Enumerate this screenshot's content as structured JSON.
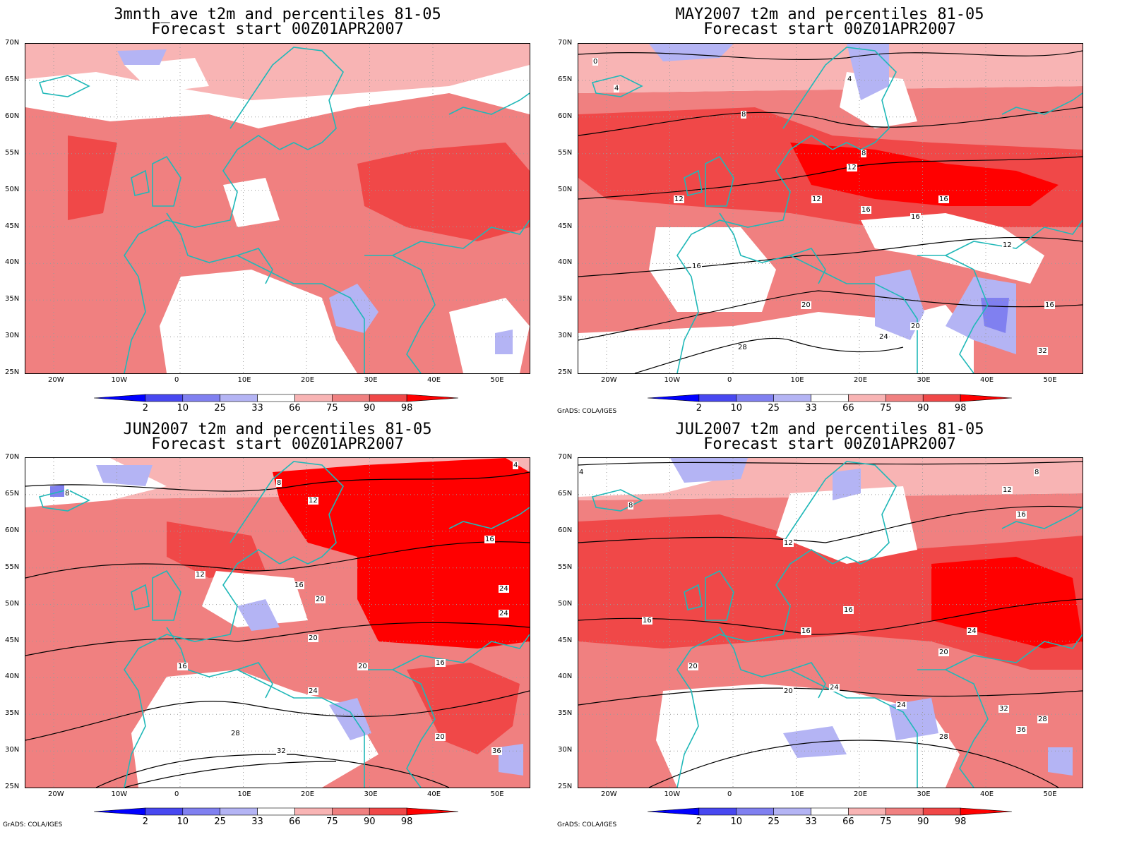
{
  "panels": [
    {
      "title": "3mnth_ave t2m and percentiles 81-05",
      "subtitle": "Forecast start 00Z01APR2007",
      "credit": "",
      "contour_labels": []
    },
    {
      "title": "MAY2007 t2m and percentiles 81-05",
      "subtitle": "Forecast start 00Z01APR2007",
      "credit": "GrADS: COLA/IGES",
      "contour_labels": [
        "0",
        "4",
        "4",
        "8",
        "8",
        "12",
        "12",
        "12",
        "16",
        "16",
        "16",
        "16",
        "20",
        "20",
        "24",
        "28",
        "32",
        "12",
        "16"
      ]
    },
    {
      "title": "JUN2007 t2m and percentiles 81-05",
      "subtitle": "Forecast start 00Z01APR2007",
      "credit": "GrADS: COLA/IGES",
      "contour_labels": [
        "4",
        "8",
        "8",
        "12",
        "12",
        "16",
        "16",
        "16",
        "20",
        "20",
        "20",
        "24",
        "24",
        "28",
        "32",
        "36",
        "16",
        "20",
        "24"
      ]
    },
    {
      "title": "JUL2007 t2m and percentiles 81-05",
      "subtitle": "Forecast start 00Z01APR2007",
      "credit": "GrADS: COLA/IGES",
      "contour_labels": [
        "4",
        "8",
        "8",
        "12",
        "12",
        "16",
        "16",
        "16",
        "20",
        "20",
        "24",
        "24",
        "28",
        "32",
        "36",
        "24",
        "28",
        "20",
        "16"
      ]
    }
  ],
  "map": {
    "lat_labels": [
      "70N",
      "65N",
      "60N",
      "55N",
      "50N",
      "45N",
      "40N",
      "35N",
      "30N",
      "25N"
    ],
    "lon_labels": [
      "20W",
      "10W",
      "0",
      "10E",
      "20E",
      "30E",
      "40E",
      "50E"
    ]
  },
  "colorbar": {
    "labels": [
      "2",
      "10",
      "25",
      "33",
      "66",
      "75",
      "90",
      "98"
    ],
    "colors": [
      "#0000ff",
      "#4848f0",
      "#8080f0",
      "#b4b4f4",
      "#ffffff",
      "#f8b4b4",
      "#f08080",
      "#f04848",
      "#ff0000"
    ]
  },
  "colors": {
    "coastline": "#20b8b8",
    "contour": "#000000"
  }
}
